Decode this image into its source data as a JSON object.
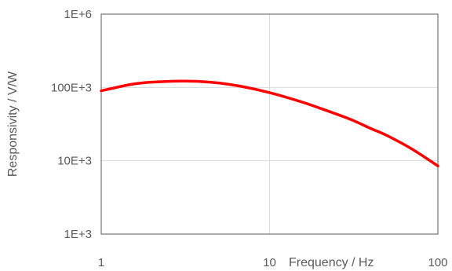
{
  "chart_data": {
    "type": "line",
    "title": "",
    "xlabel": "Frequency / Hz",
    "ylabel": "Responsivity / V/W",
    "x_scale": "log",
    "y_scale": "log",
    "xlim": [
      1,
      100
    ],
    "ylim": [
      1000,
      1000000
    ],
    "grid": true,
    "x_ticks": [
      1,
      10,
      100
    ],
    "x_tick_labels": [
      "1",
      "10",
      "100"
    ],
    "y_ticks": [
      1000,
      10000,
      100000,
      1000000
    ],
    "y_tick_labels": [
      "1E+3",
      "10E+3",
      "100E+3",
      "1E+6"
    ],
    "series": [
      {
        "color": "#ff0000",
        "x": [
          1,
          1.5,
          2,
          3,
          4,
          5,
          7,
          10,
          15,
          20,
          30,
          40,
          50,
          70,
          100
        ],
        "y": [
          90000,
          110000,
          118000,
          122000,
          120000,
          115000,
          102000,
          85000,
          65000,
          52000,
          37000,
          27500,
          22000,
          14500,
          8500
        ]
      }
    ]
  }
}
